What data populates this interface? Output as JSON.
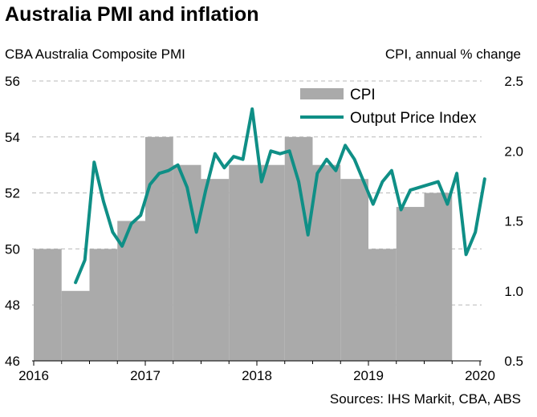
{
  "chart_data": {
    "type": "bar+line",
    "title": "Australia PMI and inflation",
    "left_axis": {
      "label": "CBA Australia Composite PMI",
      "min": 46,
      "max": 56,
      "ticks": [
        46,
        48,
        50,
        52,
        54,
        56
      ]
    },
    "right_axis": {
      "label": "CPI, annual % change",
      "min": 0.5,
      "max": 2.5,
      "ticks": [
        "0.5",
        "1.0",
        "1.5",
        "2.0",
        "2.5"
      ]
    },
    "x_axis": {
      "min": 2016.0,
      "max": 2020.0,
      "ticks": [
        "2016",
        "2017",
        "2018",
        "2019",
        "2020"
      ]
    },
    "grid": "horizontal dashed",
    "legend": {
      "placement": "top-right",
      "entries": [
        "CPI",
        "Output Price Index"
      ]
    },
    "series": [
      {
        "name": "CPI",
        "kind": "step-bars",
        "axis": "right",
        "color": "#aaaaaa",
        "quarters": [
          "2016 Q1",
          "2016 Q2",
          "2016 Q3",
          "2016 Q4",
          "2017 Q1",
          "2017 Q2",
          "2017 Q3",
          "2017 Q4",
          "2018 Q1",
          "2018 Q2",
          "2018 Q3",
          "2018 Q4",
          "2019 Q1",
          "2019 Q2",
          "2019 Q3"
        ],
        "start": [
          2016.0,
          2016.25,
          2016.5,
          2016.75,
          2017.0,
          2017.25,
          2017.5,
          2017.75,
          2018.0,
          2018.25,
          2018.5,
          2018.75,
          2019.0,
          2019.25,
          2019.5
        ],
        "end": [
          2016.25,
          2016.5,
          2016.75,
          2017.0,
          2017.25,
          2017.5,
          2017.75,
          2018.0,
          2018.25,
          2018.5,
          2018.75,
          2019.0,
          2019.25,
          2019.5,
          2019.75
        ],
        "values": [
          1.3,
          1.0,
          1.3,
          1.5,
          2.1,
          1.9,
          1.8,
          1.9,
          1.9,
          2.1,
          1.9,
          1.8,
          1.3,
          1.6,
          1.7
        ]
      },
      {
        "name": "Output Price Index",
        "kind": "line",
        "axis": "left",
        "color": "#0f8f86",
        "x": [
          "2016-05",
          "2016-06",
          "2016-07",
          "2016-08",
          "2016-09",
          "2016-10",
          "2016-11",
          "2016-12",
          "2017-01",
          "2017-02",
          "2017-03",
          "2017-04",
          "2017-05",
          "2017-06",
          "2017-07",
          "2017-08",
          "2017-09",
          "2017-10",
          "2017-11",
          "2017-12",
          "2018-01",
          "2018-02",
          "2018-03",
          "2018-04",
          "2018-05",
          "2018-06",
          "2018-07",
          "2018-08",
          "2018-09",
          "2018-10",
          "2018-11",
          "2018-12",
          "2019-01",
          "2019-02",
          "2019-03",
          "2019-04",
          "2019-05",
          "2019-06",
          "2019-07",
          "2019-08",
          "2019-09",
          "2019-10",
          "2019-11",
          "2019-12",
          "2020-01"
        ],
        "t": [
          2016.375,
          2016.458,
          2016.542,
          2016.625,
          2016.708,
          2016.792,
          2016.875,
          2016.958,
          2017.042,
          2017.125,
          2017.208,
          2017.292,
          2017.375,
          2017.458,
          2017.542,
          2017.625,
          2017.708,
          2017.792,
          2017.875,
          2017.958,
          2018.042,
          2018.125,
          2018.208,
          2018.292,
          2018.375,
          2018.458,
          2018.542,
          2018.625,
          2018.708,
          2018.792,
          2018.875,
          2018.958,
          2019.042,
          2019.125,
          2019.208,
          2019.292,
          2019.375,
          2019.458,
          2019.542,
          2019.625,
          2019.708,
          2019.792,
          2019.875,
          2019.958,
          2020.042
        ],
        "values": [
          48.8,
          49.6,
          53.1,
          51.7,
          50.6,
          50.1,
          50.9,
          51.2,
          52.3,
          52.7,
          52.8,
          53.0,
          52.2,
          50.6,
          52.1,
          53.4,
          52.9,
          53.3,
          53.2,
          55.0,
          52.4,
          53.5,
          53.4,
          53.5,
          52.4,
          50.5,
          52.7,
          53.2,
          52.8,
          53.7,
          53.2,
          52.4,
          51.6,
          52.4,
          52.8,
          51.4,
          52.1,
          52.2,
          52.3,
          52.4,
          51.6,
          52.7,
          49.8,
          50.6,
          52.5
        ]
      }
    ],
    "source": "Sources: IHS Markit, CBA, ABS"
  }
}
